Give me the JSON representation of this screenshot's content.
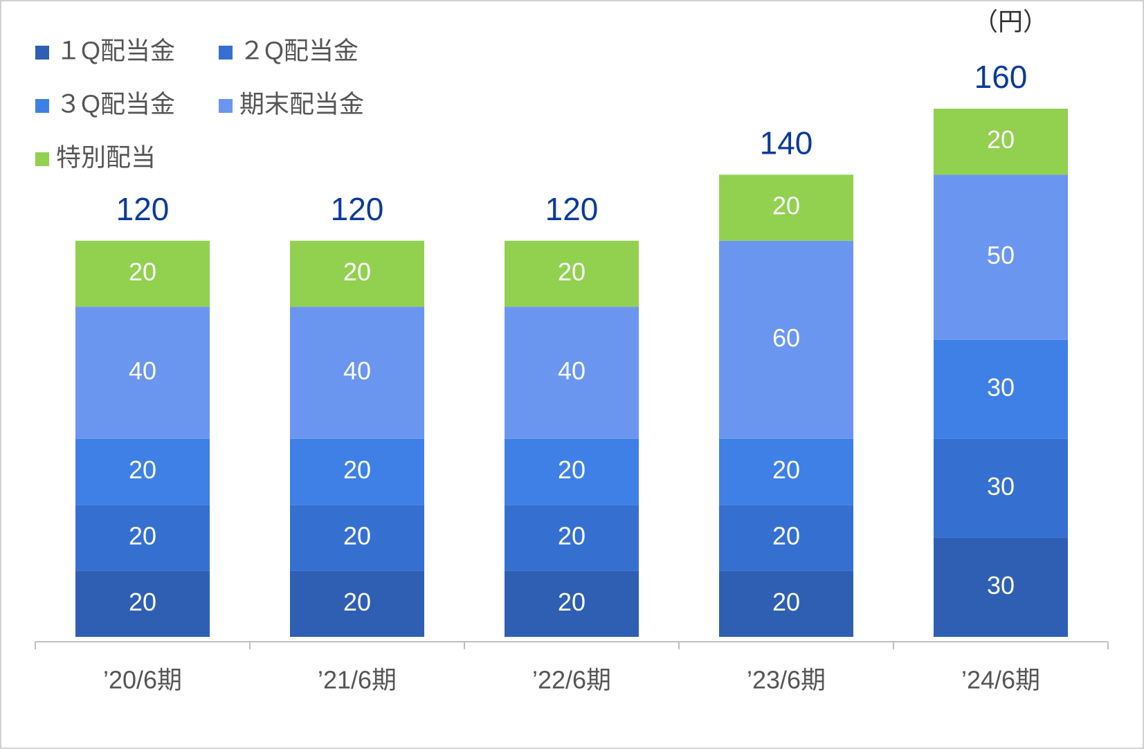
{
  "chart_data": {
    "type": "stacked_bar",
    "unit_label": "（円）",
    "categories": [
      "’20/6期",
      "’21/6期",
      "’22/6期",
      "’23/6期",
      "’24/6期"
    ],
    "series": [
      {
        "name": "１Q配当金",
        "color": "#2e5fb3",
        "values": [
          20,
          20,
          20,
          20,
          30
        ]
      },
      {
        "name": "２Q配当金",
        "color": "#3570d0",
        "values": [
          20,
          20,
          20,
          20,
          30
        ]
      },
      {
        "name": "３Q配当金",
        "color": "#3e80e6",
        "values": [
          20,
          20,
          20,
          20,
          30
        ]
      },
      {
        "name": "期末配当金",
        "color": "#6b96f0",
        "values": [
          40,
          40,
          40,
          60,
          50
        ]
      },
      {
        "name": "特別配当",
        "color": "#92d050",
        "values": [
          20,
          20,
          20,
          20,
          20
        ]
      }
    ],
    "totals": [
      120,
      120,
      120,
      140,
      160
    ],
    "ylim": [
      0,
      160
    ]
  }
}
